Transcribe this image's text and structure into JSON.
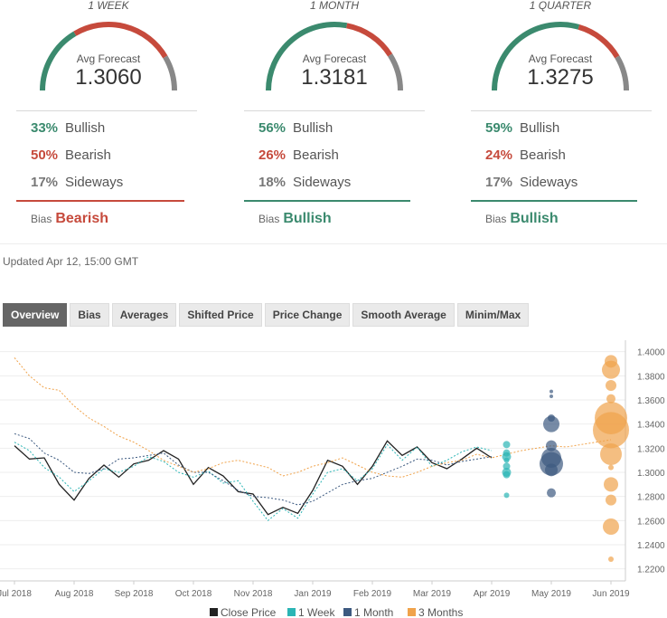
{
  "forecasts": [
    {
      "period": "1 WEEK",
      "avg_title": "Avg Forecast",
      "avg_value": "1.3060",
      "bullish_pct": "33%",
      "bearish_pct": "50%",
      "sideways_pct": "17%",
      "bullish": 33,
      "bearish": 50,
      "sideways": 17,
      "bias_label": "Bias",
      "bias": "Bearish",
      "bias_color": "#c64a3c"
    },
    {
      "period": "1 MONTH",
      "avg_title": "Avg Forecast",
      "avg_value": "1.3181",
      "bullish_pct": "56%",
      "bearish_pct": "26%",
      "sideways_pct": "18%",
      "bullish": 56,
      "bearish": 26,
      "sideways": 18,
      "bias_label": "Bias",
      "bias": "Bullish",
      "bias_color": "#3b8a6e"
    },
    {
      "period": "1 QUARTER",
      "avg_title": "Avg Forecast",
      "avg_value": "1.3275",
      "bullish_pct": "59%",
      "bearish_pct": "24%",
      "sideways_pct": "17%",
      "bullish": 59,
      "bearish": 24,
      "sideways": 17,
      "bias_label": "Bias",
      "bias": "Bullish",
      "bias_color": "#3b8a6e"
    }
  ],
  "labels": {
    "bullish": "Bullish",
    "bearish": "Bearish",
    "sideways": "Sideways"
  },
  "updated": "Updated Apr 12, 15:00 GMT",
  "tabs": [
    "Overview",
    "Bias",
    "Averages",
    "Shifted Price",
    "Price Change",
    "Smooth Average",
    "Minim/Max"
  ],
  "active_tab": "Overview",
  "colors": {
    "bullish": "#3b8a6e",
    "bearish": "#c64a3c",
    "sideways": "#888888",
    "close": "#222222",
    "week": "#2bb5b5",
    "month": "#3d5a80",
    "quarter": "#f0a34b"
  },
  "chart_data": {
    "type": "line",
    "x_labels": [
      "Jul 2018",
      "Aug 2018",
      "Sep 2018",
      "Oct 2018",
      "Nov 2018",
      "Jan 2019",
      "Feb 2019",
      "Mar 2019",
      "Apr 2019",
      "May 2019",
      "Jun 2019"
    ],
    "y_ticks": [
      "1.4000",
      "1.3800",
      "1.3600",
      "1.3400",
      "1.3200",
      "1.3000",
      "1.2800",
      "1.2600",
      "1.2400",
      "1.2200"
    ],
    "ylim": [
      1.21,
      1.405
    ],
    "legend": [
      "Close Price",
      "1 Week",
      "1 Month",
      "3 Months"
    ],
    "series": [
      {
        "name": "Close Price",
        "style": "solid",
        "color": "#222222",
        "x": [
          0,
          0.25,
          0.5,
          0.75,
          1,
          1.25,
          1.5,
          1.75,
          2,
          2.25,
          2.5,
          2.75,
          3,
          3.25,
          3.5,
          3.75,
          4,
          4.25,
          4.5,
          4.75,
          5,
          5.25,
          5.5,
          5.75,
          6,
          6.25,
          6.5,
          6.75,
          7,
          7.25,
          7.5,
          7.75,
          8
        ],
        "values": [
          1.322,
          1.311,
          1.312,
          1.29,
          1.277,
          1.295,
          1.306,
          1.296,
          1.307,
          1.31,
          1.318,
          1.311,
          1.29,
          1.304,
          1.297,
          1.284,
          1.282,
          1.265,
          1.271,
          1.266,
          1.285,
          1.31,
          1.305,
          1.29,
          1.305,
          1.326,
          1.314,
          1.321,
          1.308,
          1.303,
          1.311,
          1.32,
          1.312
        ]
      },
      {
        "name": "1 Week",
        "style": "dotted",
        "color": "#2bb5b5",
        "x": [
          0,
          0.25,
          0.5,
          0.75,
          1,
          1.25,
          1.5,
          1.75,
          2,
          2.25,
          2.5,
          2.75,
          3,
          3.25,
          3.5,
          3.75,
          4,
          4.25,
          4.5,
          4.75,
          5,
          5.25,
          5.5,
          5.75,
          6,
          6.25,
          6.5,
          6.75,
          7,
          7.25,
          7.5,
          7.75,
          8
        ],
        "values": [
          1.325,
          1.318,
          1.304,
          1.296,
          1.284,
          1.293,
          1.303,
          1.3,
          1.305,
          1.313,
          1.309,
          1.3,
          1.296,
          1.301,
          1.291,
          1.293,
          1.276,
          1.26,
          1.27,
          1.262,
          1.282,
          1.3,
          1.303,
          1.293,
          1.303,
          1.323,
          1.31,
          1.321,
          1.305,
          1.31,
          1.317,
          1.321,
          1.318
        ]
      },
      {
        "name": "1 Month",
        "style": "dotted",
        "color": "#3d5a80",
        "x": [
          0,
          0.25,
          0.5,
          0.75,
          1,
          1.25,
          1.5,
          1.75,
          2,
          2.25,
          2.5,
          2.75,
          3,
          3.25,
          3.5,
          3.75,
          4,
          4.25,
          4.5,
          4.75,
          5,
          5.25,
          5.5,
          5.75,
          6,
          6.25,
          6.5,
          6.75,
          7,
          7.25,
          7.5,
          7.75,
          8
        ],
        "values": [
          1.332,
          1.328,
          1.316,
          1.31,
          1.3,
          1.299,
          1.303,
          1.311,
          1.312,
          1.314,
          1.316,
          1.306,
          1.3,
          1.3,
          1.293,
          1.285,
          1.28,
          1.279,
          1.277,
          1.273,
          1.276,
          1.283,
          1.29,
          1.293,
          1.295,
          1.3,
          1.305,
          1.311,
          1.31,
          1.306,
          1.309,
          1.311,
          1.313
        ]
      },
      {
        "name": "3 Months",
        "style": "dotted",
        "color": "#f0a34b",
        "x": [
          0,
          0.25,
          0.5,
          0.75,
          1,
          1.25,
          1.5,
          1.75,
          2,
          2.25,
          2.5,
          2.75,
          3,
          3.25,
          3.5,
          3.75,
          4,
          4.25,
          4.5,
          4.75,
          5,
          5.25,
          5.5,
          5.75,
          6,
          6.25,
          6.5,
          6.75,
          7,
          7.25,
          7.5,
          7.75,
          8,
          8.25,
          8.5,
          8.75,
          9,
          9.25,
          9.5,
          9.75,
          10
        ],
        "values": [
          1.395,
          1.38,
          1.37,
          1.368,
          1.355,
          1.345,
          1.338,
          1.33,
          1.325,
          1.318,
          1.31,
          1.305,
          1.3,
          1.303,
          1.308,
          1.31,
          1.307,
          1.304,
          1.297,
          1.3,
          1.305,
          1.308,
          1.312,
          1.306,
          1.3,
          1.297,
          1.296,
          1.3,
          1.305,
          1.308,
          1.31,
          1.315,
          1.312,
          1.315,
          1.318,
          1.32,
          1.322,
          1.321,
          1.323,
          1.325,
          1.327
        ]
      }
    ],
    "forecast_points": [
      {
        "series": "1 Week",
        "color": "#2bb5b5",
        "x": 8.25,
        "values": [
          1.323,
          1.316,
          1.313,
          1.31,
          1.305,
          1.3,
          1.298,
          1.281
        ],
        "sizes": [
          4,
          4,
          5,
          3,
          4,
          5,
          4,
          3
        ]
      },
      {
        "series": "1 Month",
        "color": "#3d5a80",
        "x": 9,
        "values": [
          1.367,
          1.363,
          1.345,
          1.34,
          1.322,
          1.312,
          1.307,
          1.302,
          1.283
        ],
        "sizes": [
          2,
          2,
          4,
          9,
          6,
          11,
          13,
          7,
          5
        ]
      },
      {
        "series": "3 Months",
        "color": "#f0a34b",
        "x": 10,
        "values": [
          1.392,
          1.385,
          1.372,
          1.361,
          1.345,
          1.335,
          1.315,
          1.304,
          1.29,
          1.277,
          1.255,
          1.228
        ],
        "sizes": [
          7,
          10,
          6,
          5,
          18,
          20,
          12,
          3,
          8,
          6,
          9,
          3
        ]
      }
    ]
  }
}
